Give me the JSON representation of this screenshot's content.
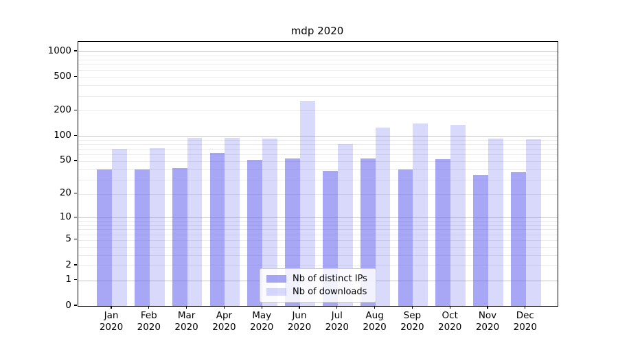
{
  "figure": {
    "title": "mdp 2020"
  },
  "chart_data": {
    "type": "bar",
    "title": "mdp 2020",
    "categories": [
      "Jan 2020",
      "Feb 2020",
      "Mar 2020",
      "Apr 2020",
      "May 2020",
      "Jun 2020",
      "Jul 2020",
      "Aug 2020",
      "Sep 2020",
      "Oct 2020",
      "Nov 2020",
      "Dec 2020"
    ],
    "x_months": [
      "Jan",
      "Feb",
      "Mar",
      "Apr",
      "May",
      "Jun",
      "Jul",
      "Aug",
      "Sep",
      "Oct",
      "Nov",
      "Dec"
    ],
    "x_year": "2020",
    "series": [
      {
        "name": "Nb of distinct IPs",
        "values": [
          40,
          40,
          41,
          63,
          52,
          54,
          38,
          54,
          40,
          53,
          34,
          37
        ],
        "fill": "rgba(95,95,238,0.55)",
        "rendered_color": "#a7a7f0"
      },
      {
        "name": "Nb of downloads",
        "values": [
          70,
          71,
          95,
          95,
          94,
          260,
          80,
          125,
          140,
          135,
          93,
          91
        ],
        "fill": "rgba(95,95,238,0.24)",
        "rendered_color": "#d9d9f7"
      }
    ],
    "yscale": "log1p",
    "ylim": [
      0,
      1300
    ],
    "y_ticks": [
      0,
      1,
      2,
      5,
      10,
      20,
      50,
      100,
      200,
      500,
      1000
    ],
    "grid": true,
    "grid_major_at": [
      1,
      10,
      100,
      1000
    ],
    "grid_minor_base": [
      2,
      3,
      4,
      5,
      6,
      7,
      8,
      9
    ],
    "legend_position": "lower center",
    "colors": {
      "grid_major": "#c3c3c3",
      "grid_minor": "#eaeaea",
      "spine": "#000000",
      "background": "#ffffff"
    }
  }
}
